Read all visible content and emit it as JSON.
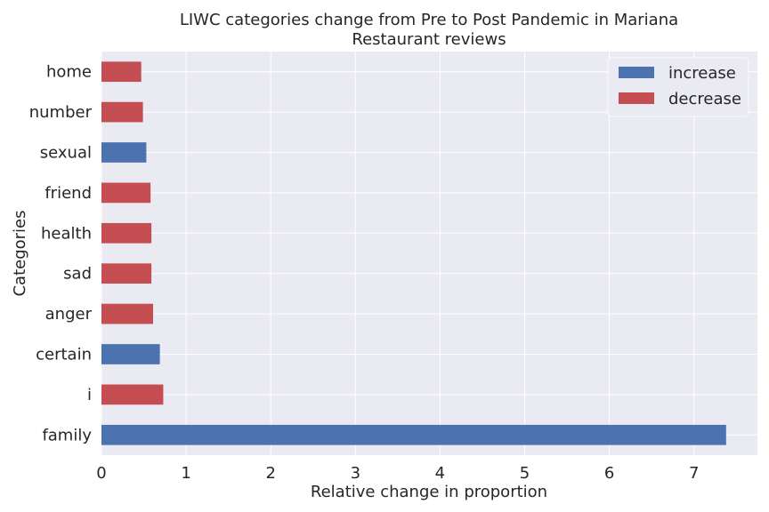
{
  "chart_data": {
    "type": "bar",
    "orientation": "horizontal",
    "title": "LIWC categories change from Pre to Post Pandemic in Mariana",
    "subtitle": "Restaurant reviews",
    "xlabel": "Relative change in proportion",
    "ylabel": "Categories",
    "xlim": [
      0,
      7.75
    ],
    "xticks": [
      "0",
      "1",
      "2",
      "3",
      "4",
      "5",
      "6",
      "7"
    ],
    "grid": true,
    "legend_position": "top-right",
    "legend": [
      {
        "label": "increase",
        "color": "#4c72b0"
      },
      {
        "label": "decrease",
        "color": "#c44e52"
      }
    ],
    "categories": [
      "family",
      "i",
      "certain",
      "anger",
      "sad",
      "health",
      "friend",
      "sexual",
      "number",
      "home"
    ],
    "values": [
      7.38,
      0.73,
      0.69,
      0.61,
      0.59,
      0.59,
      0.58,
      0.53,
      0.49,
      0.47
    ],
    "direction": [
      "increase",
      "decrease",
      "increase",
      "decrease",
      "decrease",
      "decrease",
      "decrease",
      "increase",
      "decrease",
      "decrease"
    ]
  }
}
